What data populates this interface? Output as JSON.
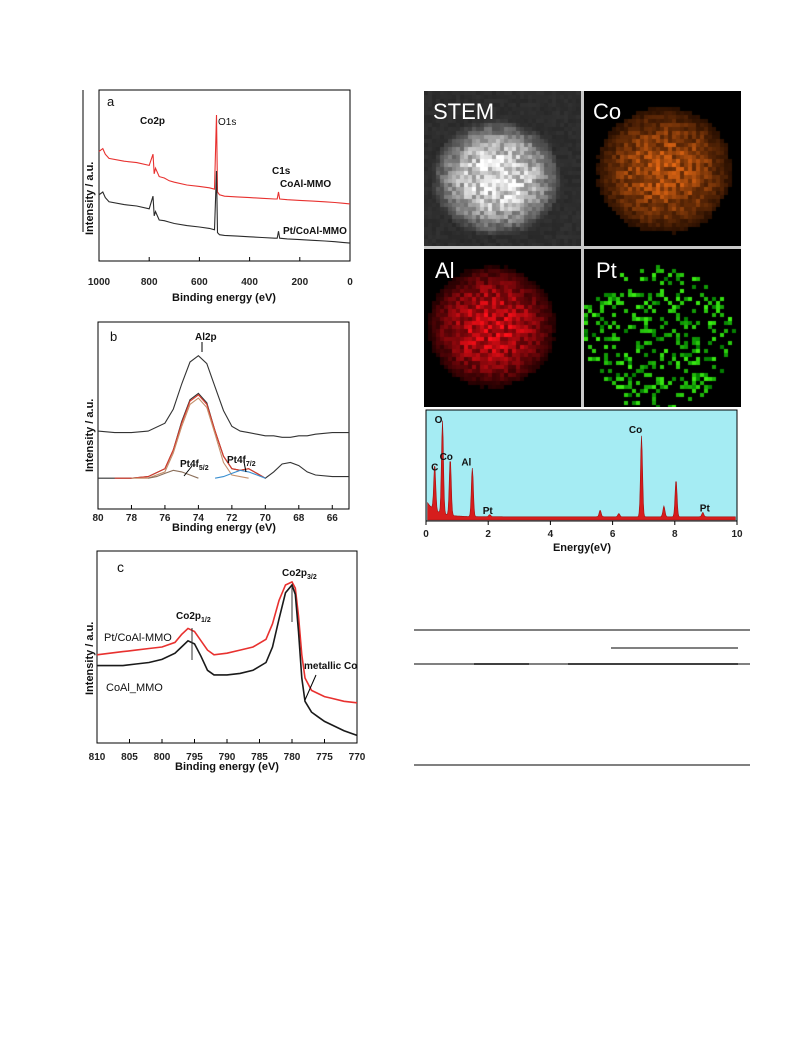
{
  "figure": {
    "stem_map_labels": [
      "STEM",
      "Co",
      "Al",
      "Pt"
    ]
  },
  "chart_data": [
    {
      "id": "a",
      "type": "line",
      "panel_label": "a",
      "xlabel": "Binding energy (eV)",
      "ylabel": "Intensity / a.u.",
      "xlim": [
        1000,
        0
      ],
      "x_reversed": true,
      "xticks": [
        1000,
        800,
        600,
        400,
        200,
        0
      ],
      "annotations": [
        "Co2p",
        "O1s",
        "C1s"
      ],
      "series": [
        {
          "name": "CoAl-MMO",
          "color": "#e8312f",
          "x": [
            1000,
            985,
            975,
            960,
            900,
            850,
            800,
            785,
            780,
            775,
            760,
            740,
            720,
            700,
            650,
            600,
            560,
            540,
            532,
            528,
            520,
            500,
            450,
            400,
            350,
            300,
            290,
            285,
            280,
            250,
            200,
            150,
            100,
            60,
            30,
            0
          ],
          "y": [
            0.74,
            0.76,
            0.72,
            0.69,
            0.67,
            0.66,
            0.64,
            0.72,
            0.58,
            0.62,
            0.56,
            0.55,
            0.53,
            0.52,
            0.5,
            0.49,
            0.48,
            0.47,
            1.0,
            0.45,
            0.43,
            0.42,
            0.415,
            0.41,
            0.405,
            0.4,
            0.4,
            0.45,
            0.4,
            0.395,
            0.39,
            0.385,
            0.38,
            0.375,
            0.37,
            0.365
          ]
        },
        {
          "name": "Pt/CoAl-MMO",
          "color": "#2b2b2b",
          "x": [
            1000,
            985,
            975,
            960,
            900,
            850,
            800,
            785,
            780,
            775,
            760,
            740,
            720,
            700,
            650,
            600,
            560,
            540,
            532,
            528,
            520,
            500,
            450,
            400,
            350,
            300,
            290,
            285,
            280,
            250,
            200,
            150,
            100,
            60,
            30,
            0
          ],
          "y": [
            0.43,
            0.45,
            0.41,
            0.38,
            0.36,
            0.35,
            0.33,
            0.42,
            0.28,
            0.31,
            0.25,
            0.245,
            0.235,
            0.225,
            0.21,
            0.2,
            0.19,
            0.18,
            0.6,
            0.16,
            0.145,
            0.14,
            0.135,
            0.13,
            0.125,
            0.12,
            0.12,
            0.17,
            0.12,
            0.115,
            0.11,
            0.105,
            0.1,
            0.095,
            0.09,
            0.085
          ]
        }
      ]
    },
    {
      "id": "b",
      "type": "line",
      "panel_label": "b",
      "xlabel": "Binding energy (eV)",
      "ylabel": "Intensity / a.u.",
      "xlim": [
        80,
        65
      ],
      "x_reversed": true,
      "xticks": [
        80,
        78,
        76,
        74,
        72,
        70,
        68,
        66
      ],
      "annotations": [
        "Al2p",
        "Pt4f5/2",
        "Pt4f7/2"
      ],
      "series": [
        {
          "name": "",
          "color": "#333333",
          "x": [
            80,
            79,
            78,
            77,
            76,
            75.5,
            75,
            74.5,
            74,
            73.5,
            73,
            72.5,
            72,
            71.5,
            71,
            70.5,
            70,
            69.5,
            69,
            68.5,
            68,
            67.5,
            67,
            66,
            65
          ],
          "y": [
            0.42,
            0.41,
            0.41,
            0.42,
            0.47,
            0.56,
            0.72,
            0.86,
            0.9,
            0.85,
            0.7,
            0.55,
            0.45,
            0.42,
            0.41,
            0.4,
            0.39,
            0.39,
            0.38,
            0.38,
            0.39,
            0.39,
            0.4,
            0.41,
            0.41
          ]
        },
        {
          "name": "",
          "color": "#333333",
          "x": [
            80,
            79,
            78,
            77,
            76,
            75.5,
            75,
            74.5,
            74,
            73.5,
            73,
            72.5,
            72,
            71.5,
            71,
            70.5,
            70,
            69.5,
            69,
            68.5,
            68,
            67.5,
            67,
            66,
            65
          ],
          "y": [
            0.12,
            0.12,
            0.12,
            0.13,
            0.18,
            0.3,
            0.48,
            0.62,
            0.66,
            0.6,
            0.42,
            0.26,
            0.18,
            0.17,
            0.18,
            0.15,
            0.12,
            0.16,
            0.21,
            0.22,
            0.2,
            0.16,
            0.14,
            0.13,
            0.13
          ]
        },
        {
          "name": "",
          "color": "#d93a2b",
          "x": [
            79,
            78,
            77,
            76,
            75.5,
            75,
            74.5,
            74,
            73.5,
            73,
            72.5,
            72,
            71.5,
            71,
            70.5,
            70
          ],
          "y": [
            0.12,
            0.12,
            0.13,
            0.18,
            0.3,
            0.47,
            0.61,
            0.65,
            0.59,
            0.42,
            0.26,
            0.18,
            0.17,
            0.18,
            0.15,
            0.12
          ]
        },
        {
          "name": "",
          "color": "#c58f6b",
          "x": [
            78,
            77,
            76,
            75.5,
            75,
            74.5,
            74,
            73.5,
            73,
            72.5,
            72,
            71
          ],
          "y": [
            0.12,
            0.12,
            0.16,
            0.28,
            0.45,
            0.59,
            0.63,
            0.57,
            0.4,
            0.22,
            0.14,
            0.12
          ]
        },
        {
          "name": "",
          "color": "#8b6f5a",
          "x": [
            77,
            76.5,
            76,
            75.5,
            75,
            74.5,
            74
          ],
          "y": [
            0.12,
            0.13,
            0.15,
            0.17,
            0.16,
            0.14,
            0.12
          ]
        },
        {
          "name": "",
          "color": "#3a8fd0",
          "x": [
            73,
            72.5,
            72,
            71.5,
            71,
            70.5,
            70
          ],
          "y": [
            0.12,
            0.13,
            0.15,
            0.17,
            0.16,
            0.14,
            0.12
          ]
        }
      ]
    },
    {
      "id": "c",
      "type": "line",
      "panel_label": "c",
      "xlabel": "Binding energy (eV)",
      "ylabel": "Intensity / a.u.",
      "xlim": [
        810,
        770
      ],
      "x_reversed": true,
      "xticks": [
        810,
        805,
        800,
        795,
        790,
        785,
        780,
        775,
        770
      ],
      "annotations": [
        "Co2p1/2",
        "Co2p3/2",
        "metallic Co"
      ],
      "series": [
        {
          "name": "Pt/CoAl-MMO",
          "color": "#e8312f",
          "x": [
            810,
            808,
            806,
            804,
            802,
            800,
            798,
            797,
            796,
            795,
            794,
            793,
            792,
            790,
            788,
            786,
            784,
            783,
            782,
            781,
            780,
            779.5,
            779,
            778.5,
            778,
            777,
            776,
            775,
            774,
            772,
            770
          ],
          "y": [
            0.55,
            0.56,
            0.57,
            0.58,
            0.59,
            0.6,
            0.63,
            0.68,
            0.72,
            0.7,
            0.64,
            0.58,
            0.55,
            0.56,
            0.58,
            0.6,
            0.65,
            0.75,
            0.9,
            1.0,
            1.02,
            0.98,
            0.8,
            0.55,
            0.4,
            0.32,
            0.3,
            0.28,
            0.27,
            0.25,
            0.24
          ]
        },
        {
          "name": "CoAl_MMO",
          "color": "#1a1a1a",
          "x": [
            810,
            808,
            806,
            804,
            802,
            800,
            798,
            797,
            796,
            795,
            794,
            793,
            792,
            790,
            788,
            786,
            784,
            783,
            782,
            781,
            780,
            779.5,
            779,
            778.5,
            778,
            777,
            776,
            775,
            774,
            772,
            770
          ],
          "y": [
            0.48,
            0.48,
            0.48,
            0.49,
            0.5,
            0.52,
            0.56,
            0.6,
            0.64,
            0.62,
            0.54,
            0.45,
            0.42,
            0.42,
            0.43,
            0.45,
            0.5,
            0.6,
            0.78,
            0.95,
            1.0,
            0.94,
            0.7,
            0.4,
            0.25,
            0.18,
            0.15,
            0.12,
            0.1,
            0.06,
            0.03
          ]
        }
      ]
    },
    {
      "id": "eds",
      "type": "area",
      "xlabel": "Energy(eV)",
      "ylabel": "",
      "xlim": [
        0,
        10
      ],
      "xticks": [
        0,
        2,
        4,
        6,
        8,
        10
      ],
      "background": "#a5ecf3",
      "fill": "#d61d1d",
      "peaks": [
        {
          "label": "C",
          "x": 0.28,
          "h": 0.42
        },
        {
          "label": "O",
          "x": 0.53,
          "h": 0.86
        },
        {
          "label": "Co",
          "x": 0.78,
          "h": 0.52
        },
        {
          "label": "Al",
          "x": 1.49,
          "h": 0.45
        },
        {
          "label": "Pt",
          "x": 2.05,
          "h": 0.02
        },
        {
          "label": "",
          "x": 5.6,
          "h": 0.06
        },
        {
          "label": "",
          "x": 6.2,
          "h": 0.03
        },
        {
          "label": "Co",
          "x": 6.93,
          "h": 0.75
        },
        {
          "label": "",
          "x": 7.65,
          "h": 0.1
        },
        {
          "label": "",
          "x": 8.04,
          "h": 0.34
        },
        {
          "label": "Pt",
          "x": 8.9,
          "h": 0.04
        }
      ]
    }
  ]
}
